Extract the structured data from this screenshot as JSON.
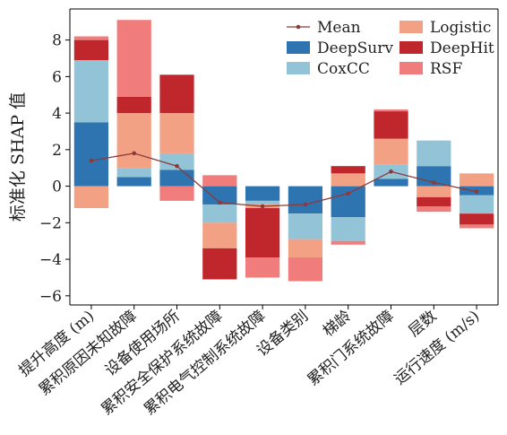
{
  "chart_data": {
    "type": "bar",
    "stacked": true,
    "ylabel": "标准化 SHAP 值",
    "ylim": [
      -6.5,
      9.7
    ],
    "yticks": [
      -6,
      -4,
      -2,
      0,
      2,
      4,
      6,
      8
    ],
    "categories": [
      "提升高度 (m)",
      "累积原因未知故障",
      "设备使用场所",
      "累积安全保护系统故障",
      "累积电气控制系统故障",
      "设备类别",
      "梯龄",
      "累积门系统故障",
      "层数",
      "运行速度 (m/s)"
    ],
    "series": [
      {
        "name": "DeepSurv",
        "color": "#2e74b0",
        "values": [
          3.5,
          0.5,
          0.9,
          -1.0,
          -0.8,
          -1.5,
          -1.7,
          0.4,
          1.1,
          -0.5
        ]
      },
      {
        "name": "CoxCC",
        "color": "#92c3d6",
        "values": [
          3.4,
          0.5,
          0.9,
          -1.0,
          -0.2,
          -1.4,
          -1.3,
          0.8,
          1.4,
          -1.0
        ]
      },
      {
        "name": "Logistic",
        "color": "#f2a185",
        "values": [
          -1.2,
          3.0,
          2.2,
          -1.4,
          -0.2,
          -1.0,
          0.7,
          1.4,
          -0.6,
          0.7
        ]
      },
      {
        "name": "DeepHit",
        "color": "#c0272d",
        "values": [
          1.1,
          0.9,
          2.1,
          -1.7,
          -2.7,
          0.0,
          0.4,
          1.5,
          -0.5,
          -0.6
        ]
      },
      {
        "name": "RSF",
        "color": "#f07c7c",
        "values": [
          0.2,
          4.2,
          -0.8,
          0.6,
          -1.1,
          -1.3,
          -0.2,
          0.1,
          -0.3,
          -0.2
        ]
      }
    ],
    "mean": {
      "name": "Mean",
      "color": "#8a3a3a",
      "values": [
        1.4,
        1.8,
        1.1,
        -0.9,
        -1.1,
        -1.0,
        -0.4,
        0.8,
        0.2,
        -0.3
      ]
    },
    "legend": "top-right",
    "grid": false
  }
}
